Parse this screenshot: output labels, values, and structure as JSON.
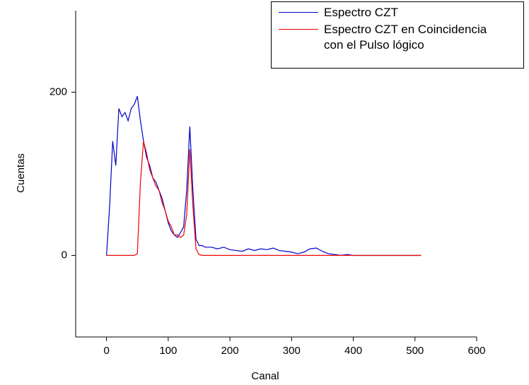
{
  "chart_data": {
    "type": "line",
    "x_label": "Canal",
    "y_label": "Cuentas",
    "x": [
      0,
      5,
      10,
      15,
      20,
      25,
      30,
      35,
      40,
      45,
      50,
      55,
      60,
      65,
      70,
      75,
      80,
      85,
      90,
      95,
      100,
      105,
      110,
      115,
      120,
      125,
      130,
      135,
      140,
      145,
      150,
      155,
      160,
      170,
      180,
      190,
      200,
      210,
      220,
      230,
      240,
      250,
      260,
      270,
      280,
      290,
      300,
      310,
      320,
      330,
      340,
      350,
      360,
      370,
      380,
      390,
      400,
      410,
      420,
      430,
      440,
      450,
      460,
      470,
      480,
      490,
      500,
      510
    ],
    "series": [
      {
        "name": "Espectro CZT",
        "color": "#0000cc",
        "values": [
          0,
          60,
          140,
          110,
          180,
          170,
          175,
          165,
          180,
          185,
          195,
          165,
          140,
          120,
          110,
          95,
          90,
          80,
          70,
          55,
          40,
          30,
          25,
          22,
          28,
          35,
          80,
          158,
          80,
          20,
          12,
          12,
          10,
          10,
          8,
          10,
          7,
          6,
          5,
          8,
          6,
          8,
          7,
          9,
          6,
          5,
          4,
          2,
          4,
          8,
          9,
          5,
          2,
          1,
          0,
          1,
          0,
          0,
          0,
          0,
          0,
          0,
          0,
          0,
          0,
          0,
          0,
          0
        ]
      },
      {
        "name": "Espectro CZT en Coincidencia\n con el Pulso lógico",
        "color": "#ee0000",
        "values": [
          0,
          0,
          0,
          0,
          0,
          0,
          0,
          0,
          0,
          0,
          2,
          90,
          140,
          125,
          105,
          95,
          85,
          80,
          65,
          55,
          42,
          35,
          25,
          25,
          22,
          25,
          50,
          130,
          60,
          8,
          1,
          0,
          0,
          0,
          0,
          0,
          0,
          0,
          0,
          0,
          0,
          0,
          0,
          0,
          0,
          0,
          0,
          0,
          0,
          0,
          0,
          0,
          0,
          0,
          0,
          0,
          0,
          0,
          0,
          0,
          0,
          0,
          0,
          0,
          0,
          0,
          0,
          0
        ]
      }
    ],
    "xlim": [
      -50,
      600
    ],
    "xticks": [
      0,
      100,
      200,
      300,
      400,
      500,
      600
    ],
    "ylim": [
      -100,
      300
    ],
    "yticks": [
      0,
      200
    ],
    "legend": "top-right"
  }
}
